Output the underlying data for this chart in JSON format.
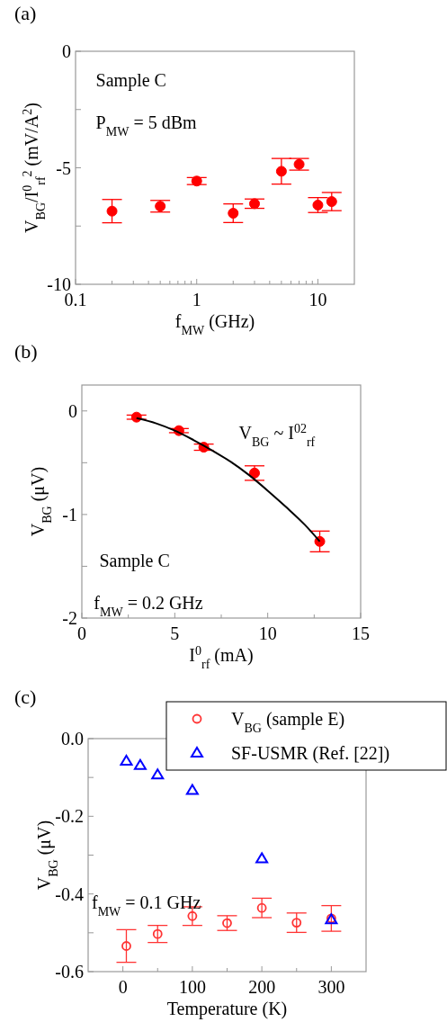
{
  "chart_data": [
    {
      "type": "scatter",
      "title": "(a)",
      "xlabel": "f$_{MW}$ (GHz)",
      "ylabel": "V$_{BG}$/I$^{0}$$_{rf}$$^{2}$ (mV/A$^{2}$)",
      "log": "x",
      "marker": "circle",
      "xlim": [
        0.1,
        20
      ],
      "xticks": [
        0.1,
        {
          "value": 0.2,
          "label": null
        },
        {
          "value": 0.3,
          "label": null
        },
        {
          "value": 0.4,
          "label": null
        },
        {
          "value": 0.5,
          "label": null
        },
        {
          "value": 0.6,
          "label": null
        },
        {
          "value": 0.7,
          "label": null
        },
        {
          "value": 0.8,
          "label": null
        },
        {
          "value": 0.9,
          "label": null
        },
        1,
        {
          "value": 2,
          "label": null
        },
        {
          "value": 3,
          "label": null
        },
        {
          "value": 4,
          "label": null
        },
        {
          "value": 5,
          "label": null
        },
        {
          "value": 6,
          "label": null
        },
        {
          "value": 7,
          "label": null
        },
        {
          "value": 8,
          "label": null
        },
        {
          "value": 9,
          "label": null
        },
        10
      ],
      "ylim": [
        -10,
        0
      ],
      "yticks": [
        -10,
        {
          "value": -7.5,
          "label": null
        },
        -5,
        {
          "value": -2.5,
          "label": null
        },
        0
      ],
      "annotations": [
        "Sample C",
        "P$_{MW}$ = 5 dBm"
      ],
      "series": [
        {
          "color": "#ff0000",
          "x": [
            0.2,
            0.5,
            1,
            2,
            3,
            5,
            7,
            10,
            13
          ],
          "values": [
            -6.86,
            -6.65,
            -5.57,
            -6.95,
            -6.54,
            -5.15,
            -4.85,
            -6.6,
            -6.45
          ],
          "errors": [
            0.5,
            0.25,
            0.15,
            0.4,
            0.2,
            0.55,
            0.25,
            0.32,
            0.39
          ]
        }
      ]
    },
    {
      "type": "scatter",
      "title": "(b)",
      "xlabel": "I$^{0}$$_{rf}$ (mA)",
      "ylabel": "V$_{BG}$ (μV)",
      "marker": "circle",
      "xlim": [
        0,
        15
      ],
      "xticks": [
        0,
        {
          "value": 2.5,
          "label": null
        },
        5,
        {
          "value": 7.5,
          "label": null
        },
        10,
        {
          "value": 12.5,
          "label": null
        },
        15
      ],
      "ylim": [
        -2,
        0.25
      ],
      "yticks": [
        -2,
        {
          "value": -1.5,
          "label": null
        },
        -1,
        {
          "value": -0.5,
          "label": null
        },
        0
      ],
      "annotations": [
        "V$_{BG}$ ~ I$^{02}$$_{rf}$",
        "Sample C",
        "f$_{MW}$ = 0.2 GHz"
      ],
      "series": [
        {
          "color": "#ff0000",
          "x": [
            2.94,
            5.22,
            6.56,
            9.29,
            12.8
          ],
          "values": [
            -0.06,
            -0.19,
            -0.35,
            -0.6,
            -1.26
          ],
          "errors": [
            0.02,
            0.02,
            0.03,
            0.07,
            0.1
          ]
        },
        {
          "type": "line",
          "marker": "none",
          "color": "#000000",
          "x": [
            2.94,
            4,
            5,
            6,
            7,
            8,
            9,
            10,
            11,
            12,
            12.8
          ],
          "values": [
            -0.07,
            -0.12,
            -0.19,
            -0.28,
            -0.38,
            -0.49,
            -0.62,
            -0.77,
            -0.93,
            -1.1,
            -1.26
          ]
        }
      ]
    },
    {
      "type": "scatter",
      "title": "(c)",
      "xlabel": "Temperature (K)",
      "ylabel": "V$_{BG}$ (μV)",
      "marker": "circle",
      "legend": "top right",
      "xlim": [
        -50,
        350
      ],
      "xticks": [
        0,
        {
          "value": 50,
          "label": null
        },
        100,
        {
          "value": 150,
          "label": null
        },
        200,
        {
          "value": 250,
          "label": null
        },
        300
      ],
      "ylim": [
        -0.6,
        0
      ],
      "yticks": [
        {
          "value": -0.6,
          "label": "-0.6"
        },
        {
          "value": -0.5,
          "label": null
        },
        {
          "value": -0.4,
          "label": "-0.4"
        },
        {
          "value": -0.3,
          "label": null
        },
        {
          "value": -0.2,
          "label": "-0.2"
        },
        {
          "value": -0.1,
          "label": null
        },
        {
          "value": 0,
          "label": "0.0"
        }
      ],
      "annotations": [
        "f$_{MW}$ = 0.1 GHz"
      ],
      "series": [
        {
          "name": "V$_{BG}$ (sample E)",
          "color": "#ff3333",
          "x": [
            5,
            50,
            100,
            150,
            200,
            250,
            300
          ],
          "values": [
            -0.534,
            -0.503,
            -0.457,
            -0.475,
            -0.436,
            -0.474,
            -0.463
          ],
          "errors": [
            0.042,
            0.022,
            0.024,
            0.019,
            0.025,
            0.025,
            0.033
          ]
        },
        {
          "name": "SF-USMR (Ref. [22])",
          "marker": "triangle",
          "color": "#0000ff",
          "x": [
            5,
            25,
            50,
            100,
            200,
            300
          ],
          "values": [
            -0.058,
            -0.069,
            -0.093,
            -0.133,
            -0.309,
            -0.466
          ]
        }
      ]
    }
  ]
}
